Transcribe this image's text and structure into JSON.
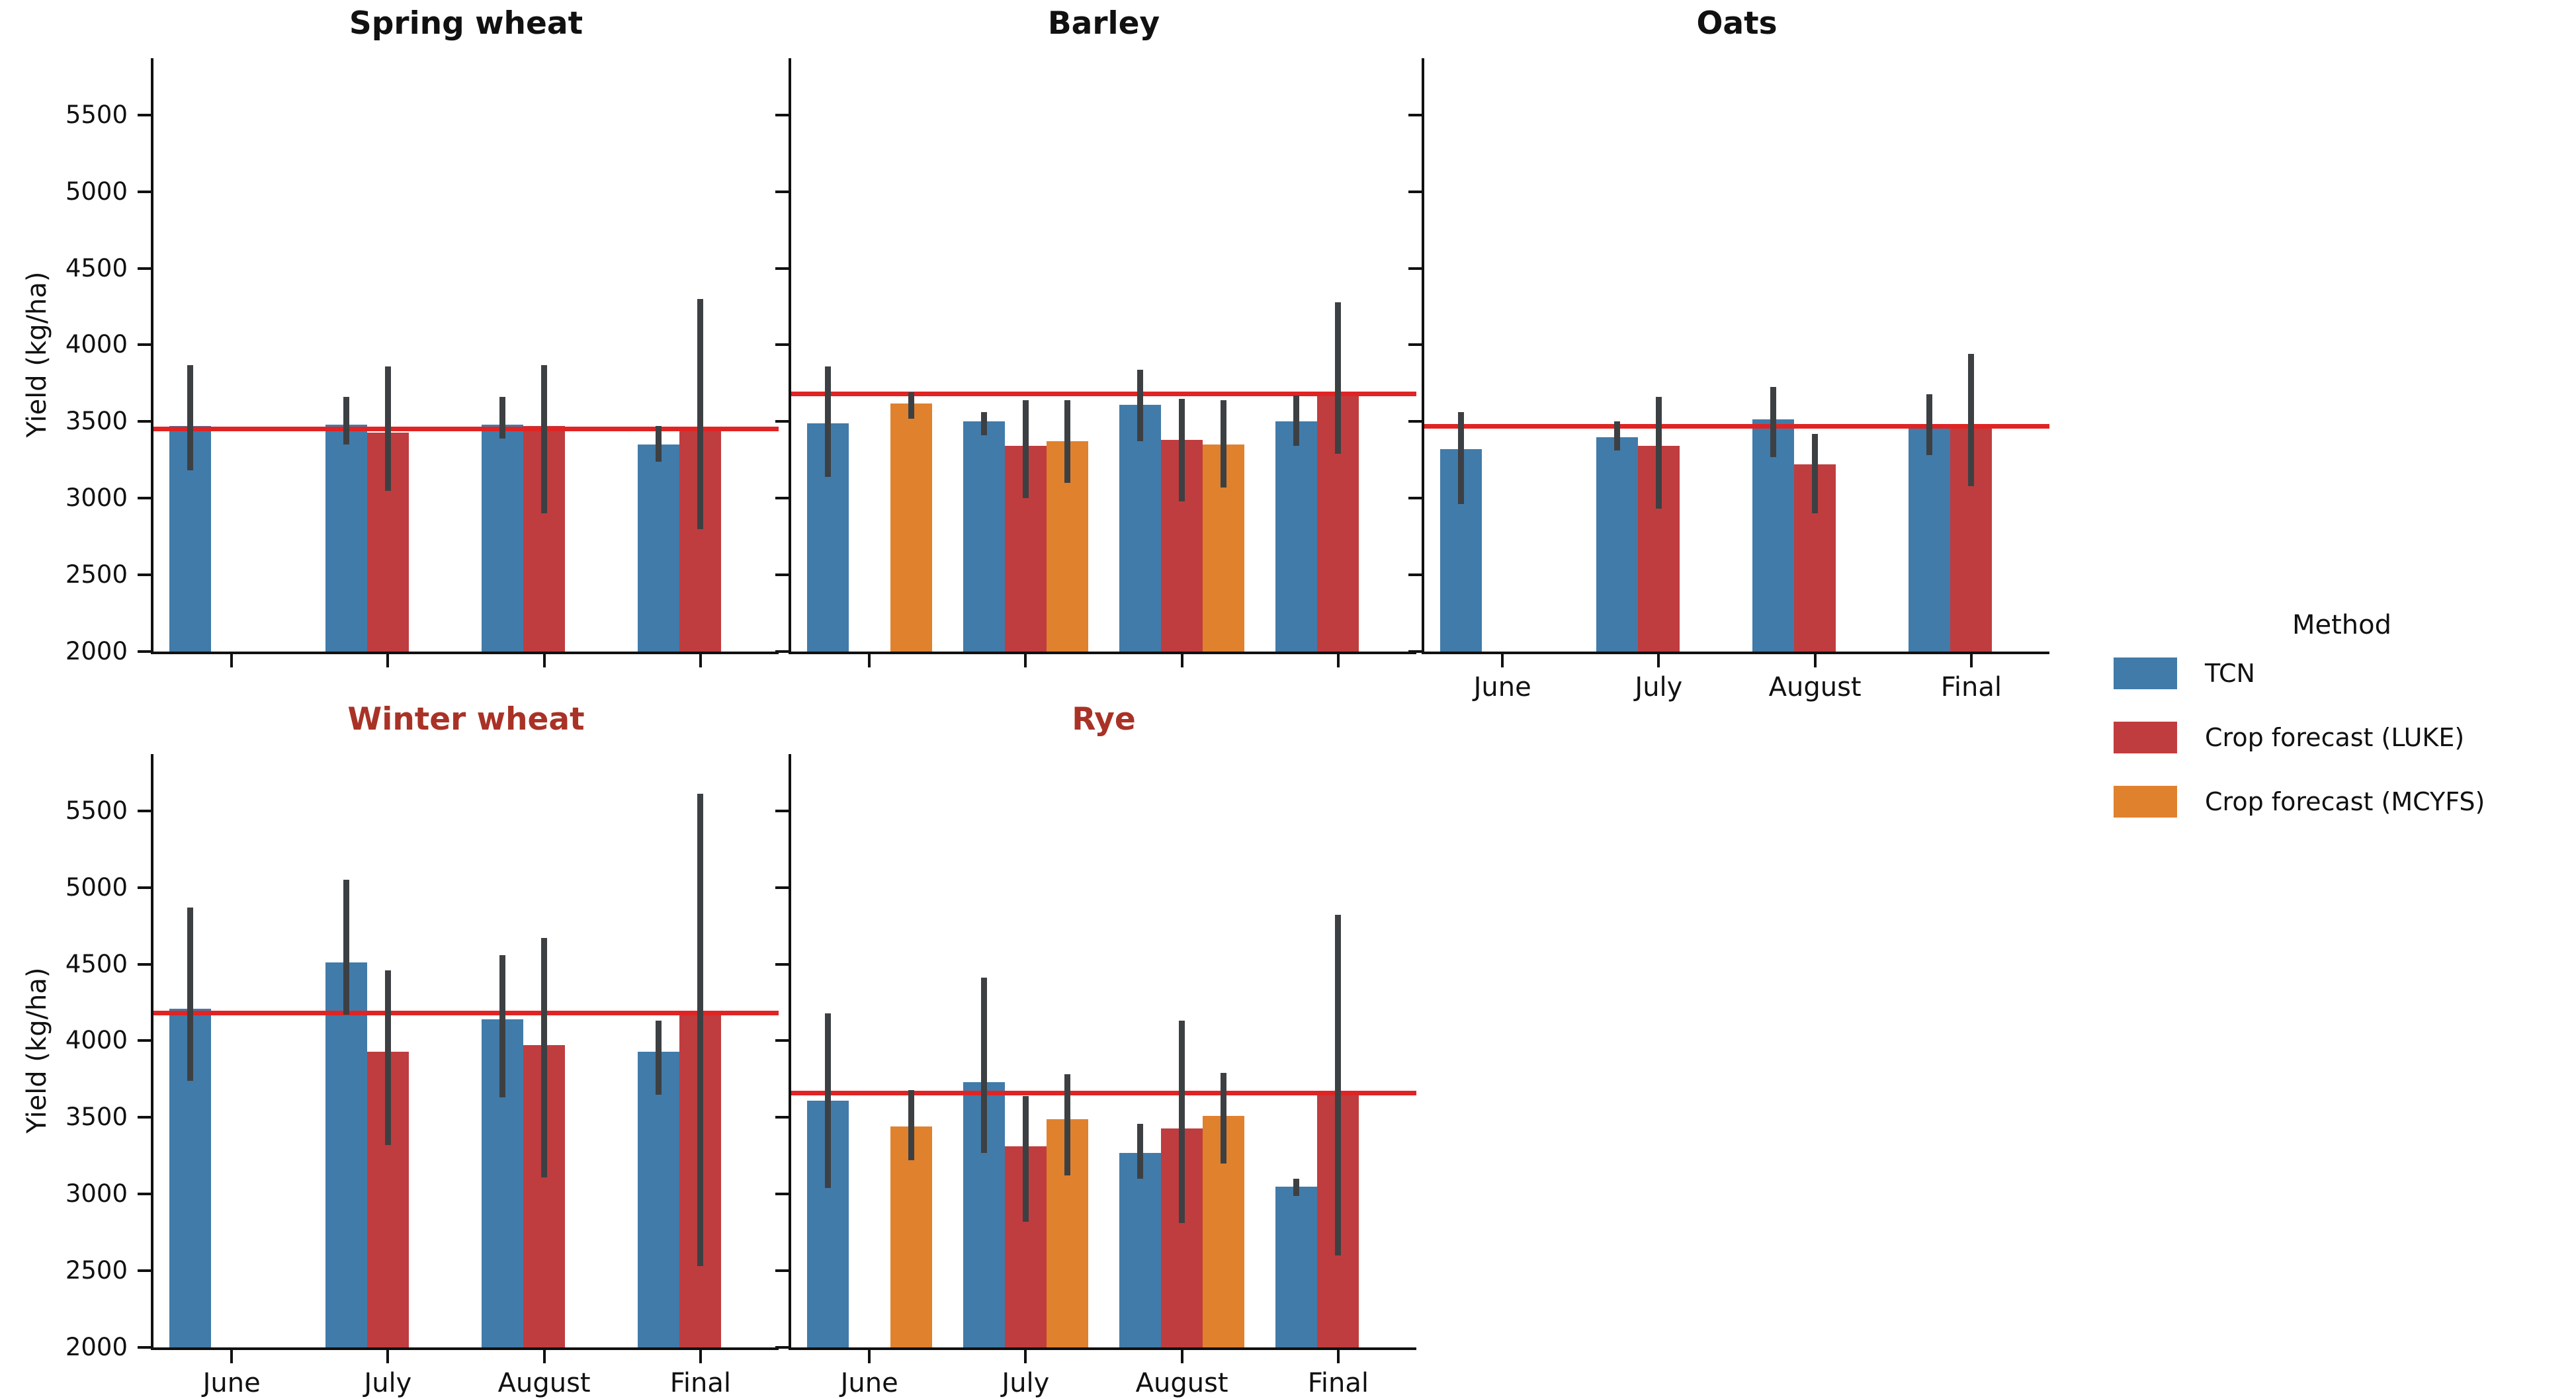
{
  "chart_data": {
    "type": "bar",
    "ylabel": "Yield (kg/ha)",
    "categories": [
      "June",
      "July",
      "August",
      "Final"
    ],
    "y_ticks": [
      2000,
      2500,
      3000,
      3500,
      4000,
      4500,
      5000,
      5500
    ],
    "ylim": [
      2000,
      5870
    ],
    "grid": false,
    "legend": {
      "title": "Method",
      "position": "right"
    },
    "methods": [
      {
        "name": "TCN",
        "color": "#417ba9"
      },
      {
        "name": "Crop forecast (LUKE)",
        "color": "#bf3d3f"
      },
      {
        "name": "Crop forecast (MCYFS)",
        "color": "#e0812e"
      }
    ],
    "error_bar_color": "#3d4043",
    "ref_line_color": "#e02424",
    "facets": [
      {
        "title": "Spring wheat",
        "title_color": "#111111",
        "ref_line": 3450,
        "series": [
          {
            "method": "TCN",
            "values": [
              3470,
              3480,
              3480,
              3350
            ],
            "err_lo": [
              3180,
              3350,
              3390,
              3240
            ],
            "err_hi": [
              3870,
              3660,
              3660,
              3470
            ]
          },
          {
            "method": "Crop forecast (LUKE)",
            "values": [
              null,
              3430,
              3470,
              3450
            ],
            "err_lo": [
              null,
              3050,
              2900,
              2800
            ],
            "err_hi": [
              null,
              3860,
              3870,
              4300
            ]
          }
        ]
      },
      {
        "title": "Barley",
        "title_color": "#111111",
        "ref_line": 3680,
        "series": [
          {
            "method": "TCN",
            "values": [
              3490,
              3500,
              3610,
              3500
            ],
            "err_lo": [
              3140,
              3410,
              3370,
              3340
            ],
            "err_hi": [
              3860,
              3560,
              3840,
              3670
            ]
          },
          {
            "method": "Crop forecast (LUKE)",
            "values": [
              null,
              3340,
              3380,
              3680
            ],
            "err_lo": [
              null,
              3000,
              2980,
              3290
            ],
            "err_hi": [
              null,
              3640,
              3650,
              4280
            ]
          },
          {
            "method": "Crop forecast (MCYFS)",
            "values": [
              3620,
              3370,
              3350,
              null
            ],
            "err_lo": [
              3520,
              3100,
              3070,
              null
            ],
            "err_hi": [
              3690,
              3640,
              3640,
              null
            ]
          }
        ]
      },
      {
        "title": "Oats",
        "title_color": "#111111",
        "ref_line": 3470,
        "series": [
          {
            "method": "TCN",
            "values": [
              3320,
              3400,
              3515,
              3460
            ],
            "err_lo": [
              2960,
              3310,
              3270,
              3280
            ],
            "err_hi": [
              3560,
              3500,
              3725,
              3680
            ]
          },
          {
            "method": "Crop forecast (LUKE)",
            "values": [
              null,
              3340,
              3220,
              3465
            ],
            "err_lo": [
              null,
              2930,
              2900,
              3080
            ],
            "err_hi": [
              null,
              3660,
              3420,
              3940
            ]
          }
        ]
      },
      {
        "title": "Winter wheat",
        "title_color": "#a93226",
        "ref_line": 4180,
        "series": [
          {
            "method": "TCN",
            "values": [
              4210,
              4510,
              4140,
              3930
            ],
            "err_lo": [
              3740,
              4170,
              3630,
              3650
            ],
            "err_hi": [
              4870,
              5050,
              4560,
              4130
            ]
          },
          {
            "method": "Crop forecast (LUKE)",
            "values": [
              null,
              3930,
              3970,
              4180
            ],
            "err_lo": [
              null,
              3320,
              3110,
              2530
            ],
            "err_hi": [
              null,
              4460,
              4670,
              5610
            ]
          }
        ]
      },
      {
        "title": "Rye",
        "title_color": "#a93226",
        "ref_line": 3660,
        "series": [
          {
            "method": "TCN",
            "values": [
              3610,
              3730,
              3270,
              3050
            ],
            "err_lo": [
              3040,
              3270,
              3100,
              2990
            ],
            "err_hi": [
              4180,
              4410,
              3460,
              3100
            ]
          },
          {
            "method": "Crop forecast (LUKE)",
            "values": [
              null,
              3310,
              3430,
              3660
            ],
            "err_lo": [
              null,
              2820,
              2810,
              2600
            ],
            "err_hi": [
              null,
              3640,
              4130,
              4820
            ]
          },
          {
            "method": "Crop forecast (MCYFS)",
            "values": [
              3440,
              3490,
              3510,
              null
            ],
            "err_lo": [
              3220,
              3120,
              3200,
              null
            ],
            "err_hi": [
              3680,
              3780,
              3790,
              null
            ]
          }
        ]
      }
    ]
  }
}
